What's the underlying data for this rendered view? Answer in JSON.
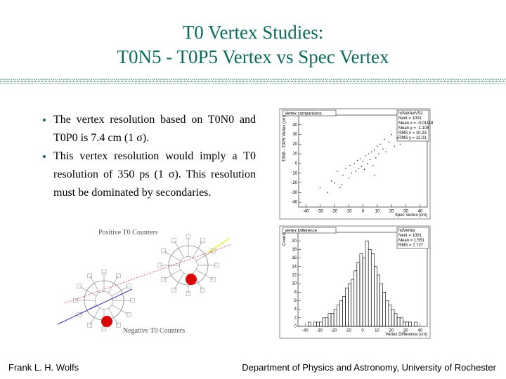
{
  "title": [
    "T0 Vertex Studies:",
    "T0N5 - T0P5 Vertex vs Spec Vertex"
  ],
  "bullets": [
    "The vertex resolution based on T0N0 and T0P0 is 7.4 cm (1 σ).",
    "This vertex resolution would imply a T0 resolution of 350 ps (1 σ).  This resolution must be dominated by secondaries."
  ],
  "diagram": {
    "top_label": "Positive T0 Counters",
    "bottom_label": "Negative T0 Counters"
  },
  "chart_data": [
    {
      "type": "scatter",
      "title": "Vertex comparisons",
      "stats": [
        "hdVertexVSz",
        "Nent = 1001",
        "Mean x = -0.01118",
        "Mean y = -1.108",
        "RMS x = 10.23",
        "RMS y = 12.01"
      ],
      "x_label": "Spec Vertex (cm)",
      "y_label": "T0N5 - T0P5 Vertex (cm)",
      "x": [
        -30,
        -25,
        -22,
        -20,
        -18,
        -15,
        -14,
        -12,
        -10,
        -9,
        -8,
        -6,
        -5,
        -4,
        -3,
        -2,
        -1,
        0,
        1,
        2,
        3,
        4,
        5,
        6,
        7,
        8,
        9,
        10,
        11,
        12,
        14,
        15,
        16,
        18,
        20,
        22,
        24,
        26,
        -16,
        8
      ],
      "y": [
        -25,
        -30,
        -18,
        -20,
        -8,
        -22,
        -12,
        -5,
        -15,
        -2,
        -10,
        0,
        -8,
        3,
        -5,
        5,
        -3,
        2,
        -6,
        8,
        0,
        10,
        4,
        12,
        -2,
        14,
        6,
        18,
        10,
        20,
        15,
        25,
        12,
        22,
        30,
        18,
        26,
        20,
        -25,
        -12
      ],
      "color": "#333333",
      "xlim": [
        -45,
        45
      ],
      "ylim": [
        -45,
        50
      ],
      "xticks": [
        -40,
        -30,
        -20,
        -10,
        0,
        10,
        20,
        30,
        40
      ],
      "yticks": [
        -40,
        -30,
        -20,
        -10,
        0,
        10,
        20,
        30,
        40
      ]
    },
    {
      "type": "histogram",
      "title": "Vertex Difference",
      "stats": [
        "hdVertex",
        "Nent = 1001",
        "Mean = 1.551",
        "RMS = 7.727"
      ],
      "x_label": "Vertex Difference (cm)",
      "y_label": "Counts",
      "bins": [
        -50,
        -48,
        -46,
        -44,
        -42,
        -40,
        -38,
        -36,
        -34,
        -32,
        -30,
        -28,
        -26,
        -24,
        -22,
        -20,
        -18,
        -16,
        -14,
        -12,
        -10,
        -8,
        -6,
        -4,
        -2,
        0,
        2,
        4,
        6,
        8,
        10,
        12,
        14,
        16,
        18,
        20,
        22,
        24,
        26,
        28,
        30,
        32,
        34,
        36,
        38,
        40,
        42,
        44,
        46,
        48,
        50
      ],
      "counts": [
        0,
        0,
        0,
        0,
        0,
        0,
        1,
        0,
        1,
        1,
        1,
        2,
        2,
        3,
        3,
        4,
        5,
        6,
        7,
        9,
        10,
        11,
        13,
        15,
        17,
        16,
        20,
        18,
        17,
        14,
        12,
        10,
        8,
        6,
        5,
        4,
        3,
        2,
        2,
        1,
        1,
        1,
        0,
        1,
        0,
        0,
        0,
        0,
        0,
        0
      ],
      "color": "#000000",
      "xlim": [
        -45,
        45
      ],
      "ylim": [
        0,
        22
      ],
      "xticks": [
        -40,
        -30,
        -20,
        -10,
        0,
        10,
        20,
        30,
        40
      ],
      "yticks": [
        0,
        2,
        4,
        6,
        8,
        10,
        12,
        14,
        16,
        18,
        20
      ]
    }
  ],
  "footer": {
    "left": "Frank L. H. Wolfs",
    "right": "Department of Physics and Astronomy, University of Rochester"
  }
}
